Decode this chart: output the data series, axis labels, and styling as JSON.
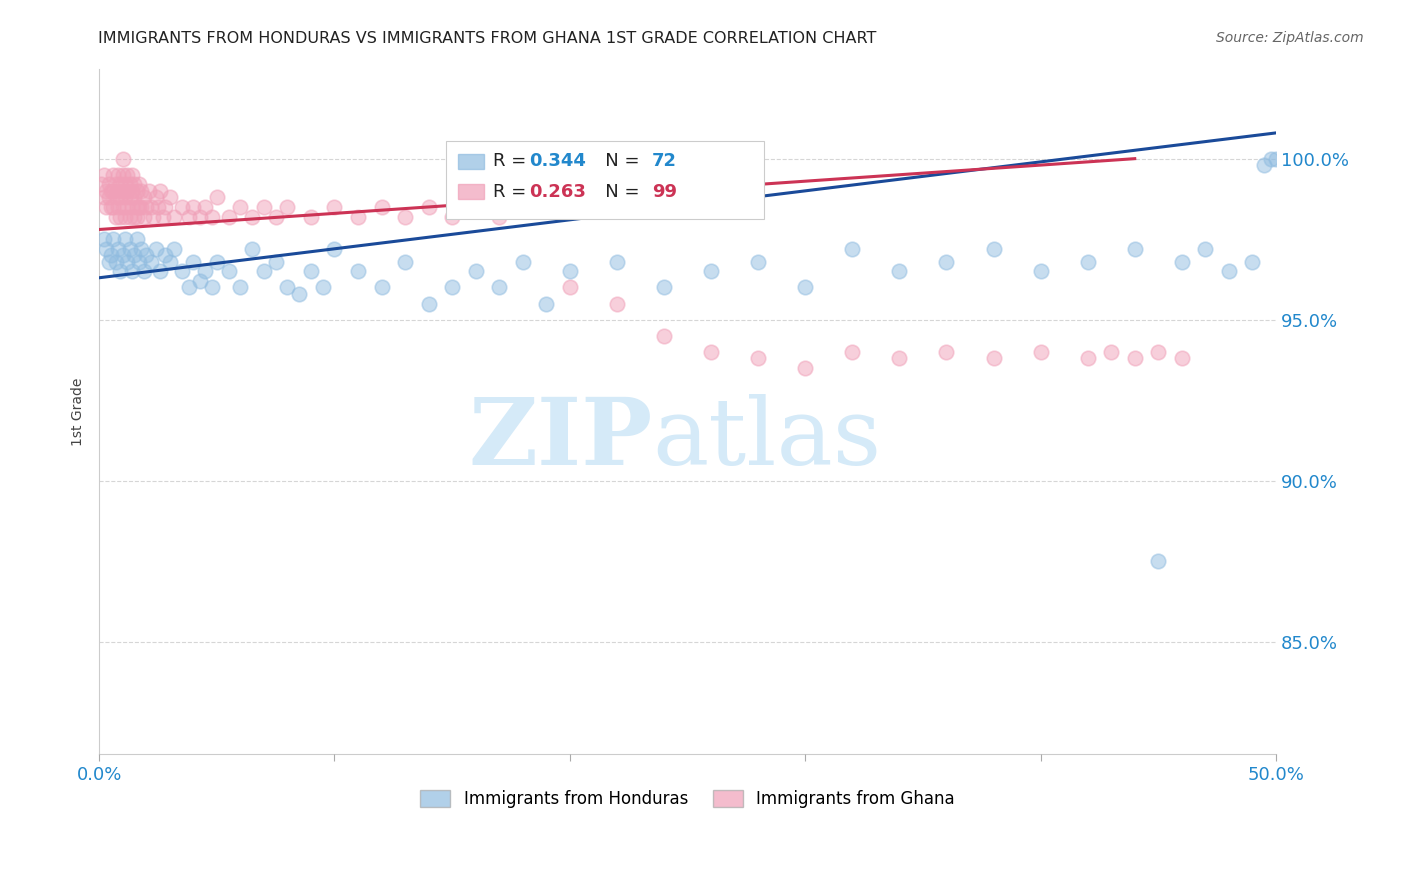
{
  "title": "IMMIGRANTS FROM HONDURAS VS IMMIGRANTS FROM GHANA 1ST GRADE CORRELATION CHART",
  "source": "Source: ZipAtlas.com",
  "ylabel": "1st Grade",
  "ytick_labels": [
    "100.0%",
    "95.0%",
    "90.0%",
    "85.0%"
  ],
  "ytick_values": [
    1.0,
    0.95,
    0.9,
    0.85
  ],
  "xlim": [
    0.0,
    0.5
  ],
  "ylim": [
    0.815,
    1.028
  ],
  "legend_blue_label": "Immigrants from Honduras",
  "legend_pink_label": "Immigrants from Ghana",
  "R_blue": 0.344,
  "N_blue": 72,
  "R_pink": 0.263,
  "N_pink": 99,
  "blue_color": "#90bce0",
  "pink_color": "#f0a0b8",
  "blue_line_color": "#1a4a99",
  "pink_line_color": "#cc3355",
  "watermark_zip": "ZIP",
  "watermark_atlas": "atlas",
  "watermark_color": "#d5eaf8",
  "blue_line_x": [
    0.0,
    0.5
  ],
  "blue_line_y": [
    0.963,
    1.008
  ],
  "pink_line_x": [
    0.0,
    0.44
  ],
  "pink_line_y": [
    0.978,
    1.0
  ],
  "blue_scatter_x": [
    0.002,
    0.003,
    0.004,
    0.005,
    0.006,
    0.007,
    0.008,
    0.009,
    0.01,
    0.011,
    0.012,
    0.013,
    0.014,
    0.015,
    0.016,
    0.017,
    0.018,
    0.019,
    0.02,
    0.022,
    0.024,
    0.026,
    0.028,
    0.03,
    0.032,
    0.035,
    0.038,
    0.04,
    0.043,
    0.045,
    0.048,
    0.05,
    0.055,
    0.06,
    0.065,
    0.07,
    0.075,
    0.08,
    0.085,
    0.09,
    0.095,
    0.1,
    0.11,
    0.12,
    0.13,
    0.14,
    0.15,
    0.16,
    0.17,
    0.18,
    0.19,
    0.2,
    0.22,
    0.24,
    0.26,
    0.28,
    0.3,
    0.32,
    0.34,
    0.36,
    0.38,
    0.4,
    0.42,
    0.44,
    0.45,
    0.46,
    0.47,
    0.48,
    0.49,
    0.495,
    0.498,
    0.5
  ],
  "blue_scatter_y": [
    0.975,
    0.972,
    0.968,
    0.97,
    0.975,
    0.968,
    0.972,
    0.965,
    0.97,
    0.975,
    0.968,
    0.972,
    0.965,
    0.97,
    0.975,
    0.968,
    0.972,
    0.965,
    0.97,
    0.968,
    0.972,
    0.965,
    0.97,
    0.968,
    0.972,
    0.965,
    0.96,
    0.968,
    0.962,
    0.965,
    0.96,
    0.968,
    0.965,
    0.96,
    0.972,
    0.965,
    0.968,
    0.96,
    0.958,
    0.965,
    0.96,
    0.972,
    0.965,
    0.96,
    0.968,
    0.955,
    0.96,
    0.965,
    0.96,
    0.968,
    0.955,
    0.965,
    0.968,
    0.96,
    0.965,
    0.968,
    0.96,
    0.972,
    0.965,
    0.968,
    0.972,
    0.965,
    0.968,
    0.972,
    0.875,
    0.968,
    0.972,
    0.965,
    0.968,
    0.998,
    1.0,
    1.0
  ],
  "pink_scatter_x": [
    0.001,
    0.002,
    0.002,
    0.003,
    0.003,
    0.004,
    0.004,
    0.005,
    0.005,
    0.006,
    0.006,
    0.006,
    0.007,
    0.007,
    0.007,
    0.008,
    0.008,
    0.008,
    0.009,
    0.009,
    0.009,
    0.01,
    0.01,
    0.01,
    0.01,
    0.011,
    0.011,
    0.011,
    0.012,
    0.012,
    0.012,
    0.013,
    0.013,
    0.013,
    0.014,
    0.014,
    0.014,
    0.015,
    0.015,
    0.015,
    0.016,
    0.016,
    0.016,
    0.017,
    0.017,
    0.018,
    0.018,
    0.019,
    0.019,
    0.02,
    0.021,
    0.022,
    0.023,
    0.024,
    0.025,
    0.026,
    0.027,
    0.028,
    0.03,
    0.032,
    0.035,
    0.038,
    0.04,
    0.043,
    0.045,
    0.048,
    0.05,
    0.055,
    0.06,
    0.065,
    0.07,
    0.075,
    0.08,
    0.09,
    0.1,
    0.11,
    0.12,
    0.13,
    0.14,
    0.15,
    0.16,
    0.17,
    0.18,
    0.2,
    0.22,
    0.24,
    0.26,
    0.28,
    0.3,
    0.32,
    0.34,
    0.36,
    0.38,
    0.4,
    0.42,
    0.43,
    0.44,
    0.45,
    0.46
  ],
  "pink_scatter_y": [
    0.992,
    0.988,
    0.995,
    0.985,
    0.99,
    0.988,
    0.992,
    0.985,
    0.99,
    0.985,
    0.99,
    0.995,
    0.982,
    0.988,
    0.992,
    0.985,
    0.99,
    0.995,
    0.982,
    0.988,
    0.992,
    0.985,
    0.99,
    0.995,
    1.0,
    0.982,
    0.988,
    0.992,
    0.985,
    0.99,
    0.995,
    0.982,
    0.988,
    0.992,
    0.985,
    0.99,
    0.995,
    0.982,
    0.988,
    0.992,
    0.985,
    0.99,
    0.982,
    0.985,
    0.992,
    0.985,
    0.99,
    0.982,
    0.988,
    0.985,
    0.99,
    0.985,
    0.982,
    0.988,
    0.985,
    0.99,
    0.982,
    0.985,
    0.988,
    0.982,
    0.985,
    0.982,
    0.985,
    0.982,
    0.985,
    0.982,
    0.988,
    0.982,
    0.985,
    0.982,
    0.985,
    0.982,
    0.985,
    0.982,
    0.985,
    0.982,
    0.985,
    0.982,
    0.985,
    0.982,
    0.985,
    0.982,
    0.985,
    0.96,
    0.955,
    0.945,
    0.94,
    0.938,
    0.935,
    0.94,
    0.938,
    0.94,
    0.938,
    0.94,
    0.938,
    0.94,
    0.938,
    0.94,
    0.938
  ]
}
